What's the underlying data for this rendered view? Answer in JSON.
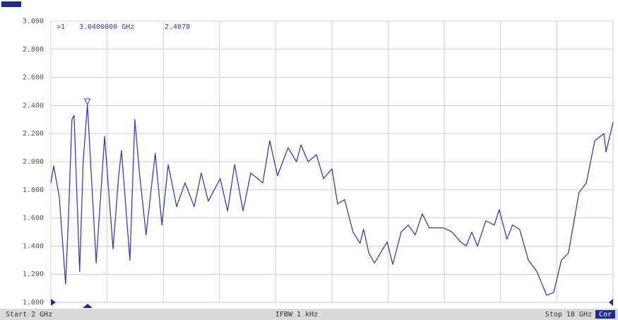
{
  "chart_data": {
    "type": "line",
    "x": [
      2.0,
      2.08,
      2.24,
      2.42,
      2.5,
      2.6,
      2.66,
      2.82,
      2.92,
      3.04,
      3.29,
      3.53,
      3.77,
      3.93,
      4.01,
      4.25,
      4.39,
      4.53,
      4.71,
      4.97,
      5.16,
      5.34,
      5.58,
      5.82,
      6.08,
      6.28,
      6.48,
      6.82,
      7.03,
      7.23,
      7.47,
      7.69,
      8.03,
      8.23,
      8.45,
      8.75,
      8.99,
      9.12,
      9.32,
      9.56,
      9.76,
      10.0,
      10.16,
      10.36,
      10.6,
      10.8,
      10.9,
      11.05,
      11.21,
      11.57,
      11.73,
      11.97,
      12.17,
      12.37,
      12.57,
      12.77,
      13.18,
      13.42,
      13.66,
      13.82,
      13.98,
      14.14,
      14.38,
      14.62,
      14.76,
      14.98,
      15.14,
      15.34,
      15.59,
      15.83,
      16.11,
      16.31,
      16.53,
      16.73,
      17.03,
      17.24,
      17.48,
      17.74,
      17.8,
      18.0
    ],
    "series": [
      {
        "color": "#3c3caa",
        "values": [
          1.85,
          1.97,
          1.75,
          1.13,
          1.6,
          2.3,
          2.33,
          1.22,
          2.0,
          2.41,
          1.28,
          2.18,
          1.38,
          1.9,
          2.08,
          1.3,
          2.3,
          1.9,
          1.48,
          2.06,
          1.55,
          1.98,
          1.68,
          1.85,
          1.68,
          1.92,
          1.72,
          1.88,
          1.65,
          1.98,
          1.65,
          1.92,
          1.85,
          2.15,
          1.9,
          2.1,
          2.0,
          2.12,
          2.0,
          2.05,
          1.88,
          1.95,
          1.7,
          1.73,
          1.5,
          1.42,
          1.52,
          1.35,
          1.28,
          1.43,
          1.27,
          1.5,
          1.55,
          1.48,
          1.63,
          1.53,
          1.53,
          1.5,
          1.43,
          1.4,
          1.5,
          1.4,
          1.58,
          1.55,
          1.66,
          1.45,
          1.55,
          1.52,
          1.3,
          1.22,
          1.05,
          1.07,
          1.3,
          1.35,
          1.78,
          1.85,
          2.15,
          2.2,
          2.07,
          2.28
        ]
      }
    ],
    "xlim": [
      2,
      18
    ],
    "xticks": [
      2,
      3.6,
      5.2,
      6.8,
      8.4,
      10,
      11.6,
      13.2,
      14.8,
      16.4,
      18
    ],
    "ylim": [
      1,
      3
    ],
    "yticks": [
      {
        "value": 1,
        "label": "1.000"
      },
      {
        "value": 1.2,
        "label": "1.200"
      },
      {
        "value": 1.4,
        "label": "1.400"
      },
      {
        "value": 1.6,
        "label": "1.600"
      },
      {
        "value": 1.8,
        "label": "1.800"
      },
      {
        "value": 2,
        "label": "2.000"
      },
      {
        "value": 2.2,
        "label": "2.200"
      },
      {
        "value": 2.4,
        "label": "2.400"
      },
      {
        "value": 2.6,
        "label": "2.600"
      },
      {
        "value": 2.8,
        "label": "2.800"
      },
      {
        "value": 3,
        "label": "3.000"
      }
    ],
    "grid": true,
    "marker": {
      "label": ">1",
      "frequency": "3.0400000 GHz",
      "x": 3.04,
      "value": 2.4078
    }
  },
  "status_bar": {
    "start": "Start 2 GHz",
    "center": "IFBW 1 kHz",
    "stop": "Stop 18 GHz",
    "status": "Cor"
  }
}
